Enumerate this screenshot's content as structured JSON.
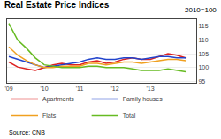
{
  "chart_data": {
    "type": "line",
    "title": "Real Estate Price Indices",
    "subtitle": "2010=100",
    "annotations": [
      "Source: CNB"
    ],
    "x": [
      2009.0,
      2009.25,
      2009.5,
      2009.75,
      2010.0,
      2010.25,
      2010.5,
      2010.75,
      2011.0,
      2011.25,
      2011.5,
      2011.75,
      2012.0,
      2012.25,
      2012.5,
      2012.75,
      2013.0,
      2013.25,
      2013.5,
      2013.75,
      2014.0
    ],
    "xlim": [
      2008.95,
      2014.3
    ],
    "xticks": [
      {
        "value": 2009,
        "label": "'09"
      },
      {
        "value": 2010,
        "label": "'10"
      },
      {
        "value": 2011,
        "label": "'11"
      },
      {
        "value": 2012,
        "label": "'12"
      },
      {
        "value": 2013,
        "label": "'13"
      }
    ],
    "ylim": [
      94.5,
      117.5
    ],
    "yticks": [
      95,
      100,
      105,
      110,
      115
    ],
    "grid": true,
    "legend": "bottom",
    "series": [
      {
        "name": "Apartments",
        "color": "#dd2222",
        "values": [
          102.0,
          100.2,
          99.5,
          99.0,
          100.0,
          101.0,
          101.5,
          101.0,
          101.0,
          102.0,
          102.5,
          101.5,
          102.0,
          103.0,
          103.5,
          103.0,
          103.0,
          104.0,
          105.0,
          104.5,
          103.5
        ]
      },
      {
        "name": "Family houses",
        "color": "#2244cc",
        "values": [
          104.0,
          103.0,
          102.0,
          101.0,
          100.0,
          100.5,
          101.0,
          101.5,
          102.0,
          103.0,
          103.5,
          103.0,
          103.0,
          103.5,
          103.5,
          103.0,
          103.5,
          104.0,
          104.0,
          103.5,
          103.5
        ]
      },
      {
        "name": "Flats",
        "color": "#f0a020",
        "values": [
          107.5,
          104.5,
          102.5,
          101.0,
          100.0,
          100.0,
          100.5,
          100.5,
          100.5,
          101.5,
          101.5,
          101.0,
          101.5,
          102.0,
          102.0,
          101.5,
          102.0,
          102.5,
          103.0,
          103.0,
          102.5
        ]
      },
      {
        "name": "Total",
        "color": "#66bb22",
        "values": [
          116.0,
          110.0,
          107.0,
          103.5,
          101.0,
          100.5,
          100.0,
          100.0,
          100.0,
          100.5,
          100.5,
          100.0,
          100.0,
          100.0,
          99.5,
          99.0,
          99.0,
          99.0,
          99.5,
          99.0,
          98.5
        ]
      }
    ]
  }
}
